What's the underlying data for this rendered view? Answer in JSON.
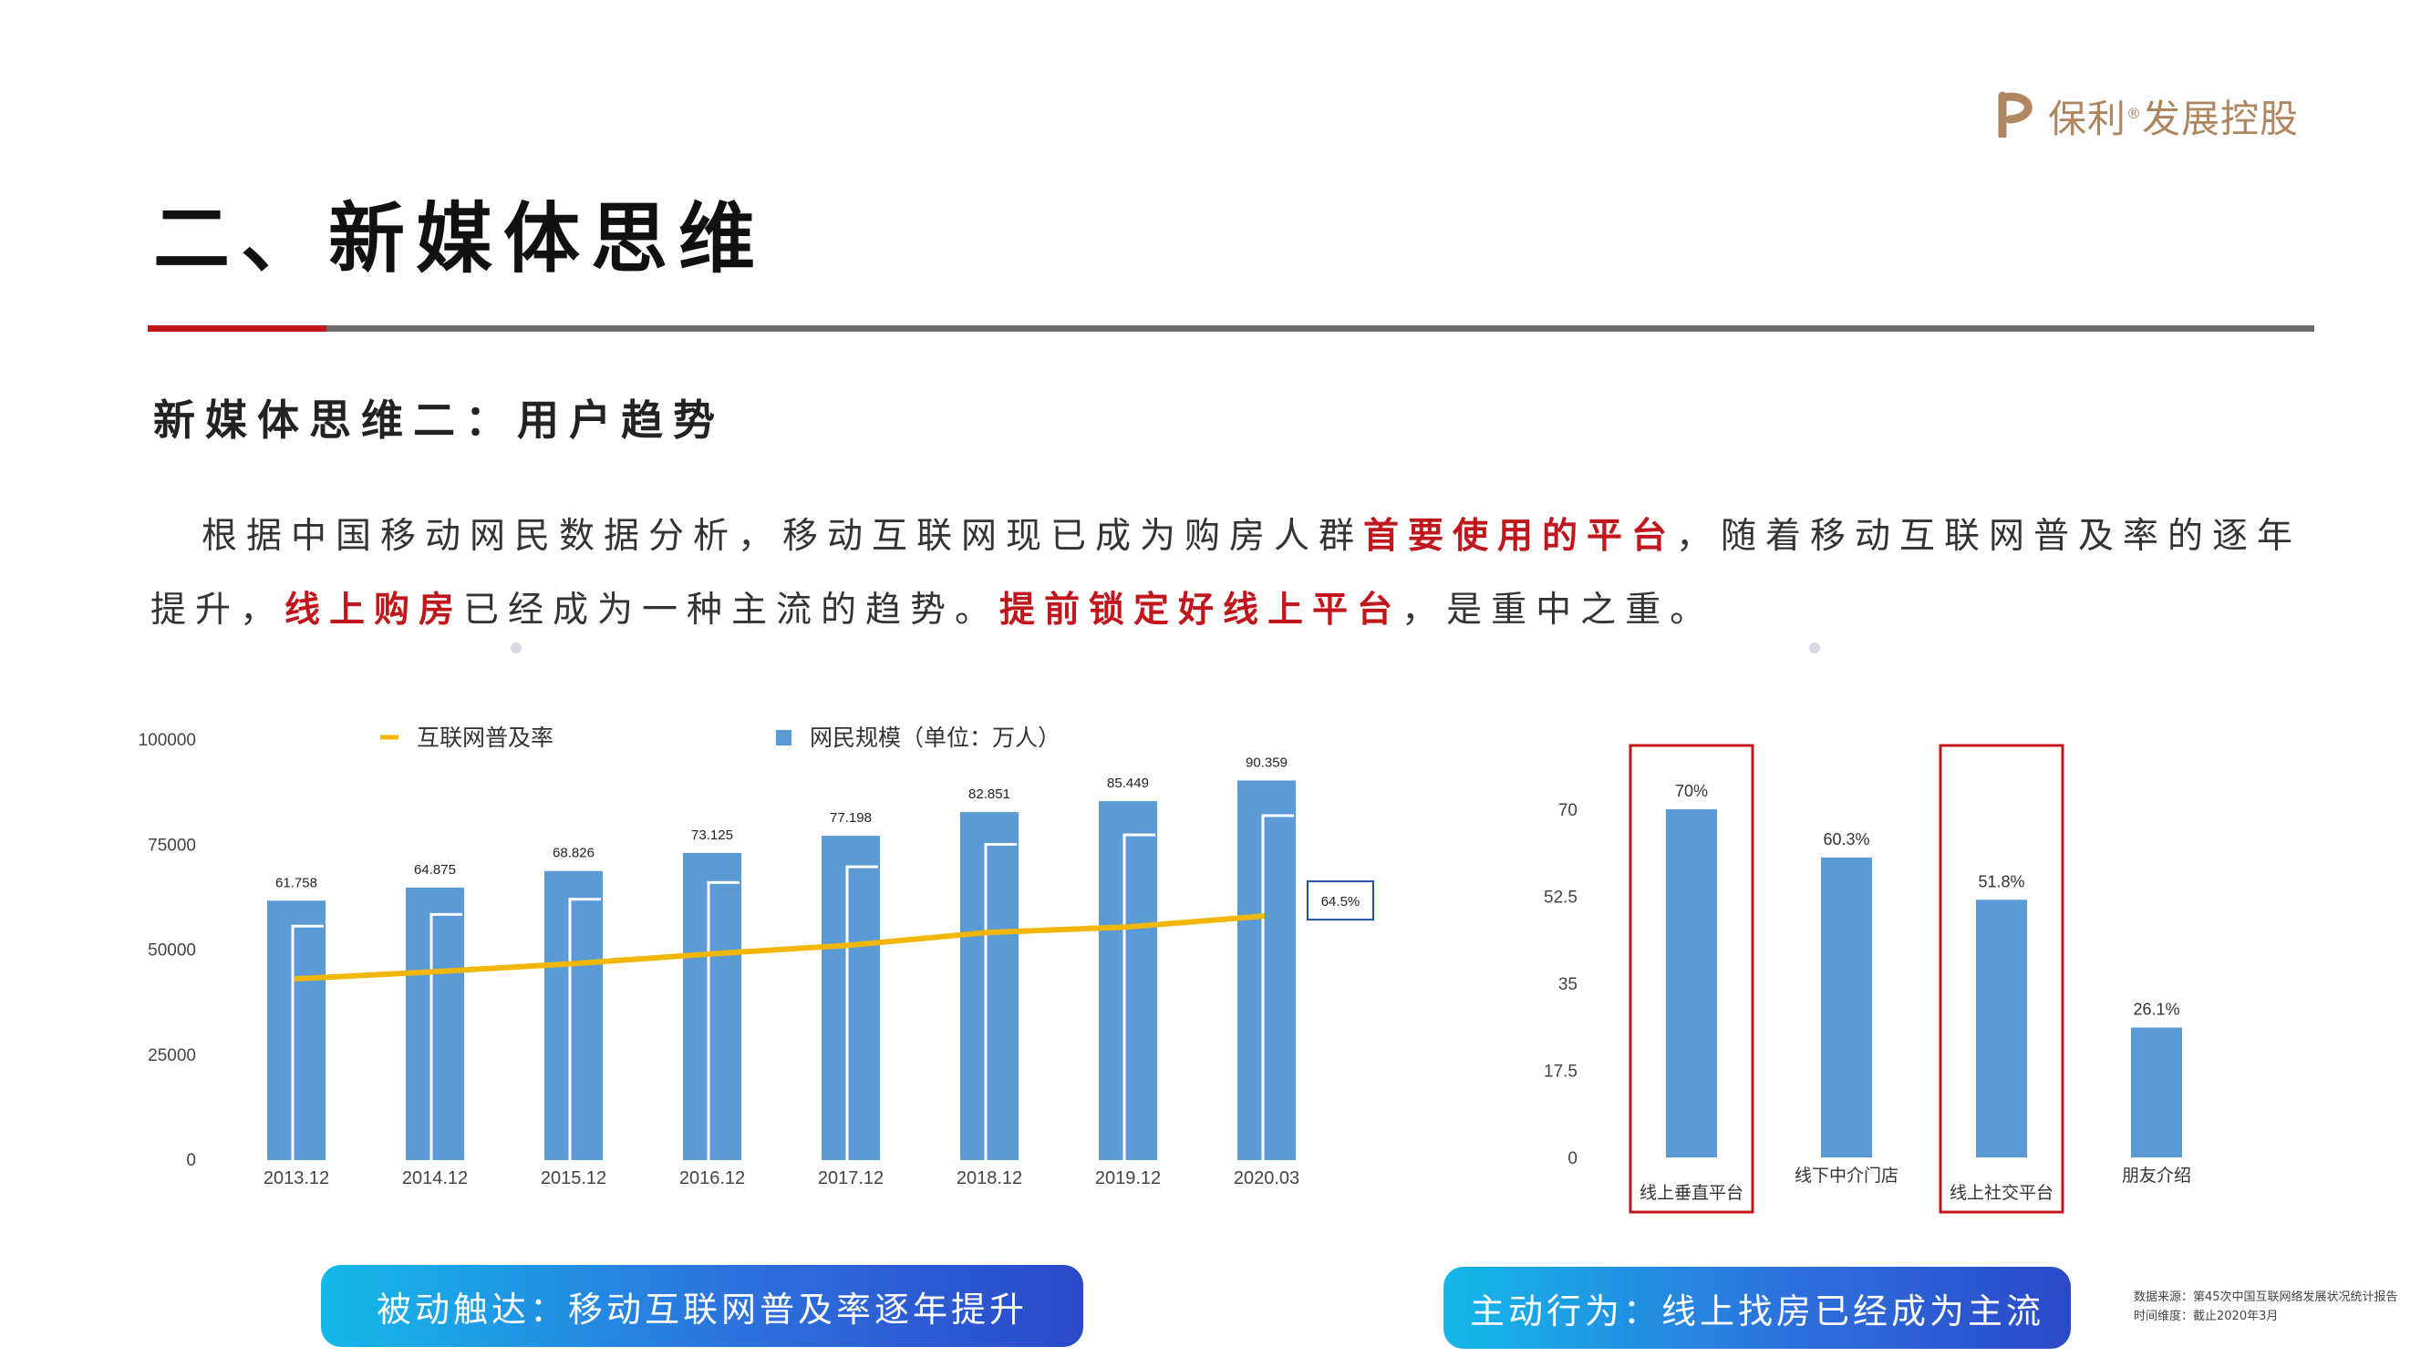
{
  "logo": {
    "brand": "保利",
    "reg": "®",
    "suffix": "发展控股",
    "color": "#b08660"
  },
  "title": "二、新媒体思维",
  "subtitle": "新媒体思维二：用户趋势",
  "paragraph": {
    "p1": "根据中国移动网民数据分析，移动互联网现已成为购房人群",
    "h1": "首要使用的平台",
    "p2": "，随着移动互联网普及率的逐年提升，",
    "h2": "线上购房",
    "p3": "已经成为一种主流的趋势。",
    "h3": "提前锁定好线上平台",
    "p4": "，是重中之重。",
    "highlight_color": "#c0161c"
  },
  "chart_data": [
    {
      "type": "bar",
      "legend": [
        {
          "name": "互联网普及率",
          "marker": "line",
          "color": "#f2b705"
        },
        {
          "name": "网民规模（单位：万人）",
          "marker": "square",
          "color": "#5b9bd5"
        }
      ],
      "categories": [
        "2013.12",
        "2014.12",
        "2015.12",
        "2016.12",
        "2017.12",
        "2018.12",
        "2019.12",
        "2020.03"
      ],
      "series": [
        {
          "name": "网民规模（单位：万人）",
          "type": "bar",
          "values": [
            61758,
            64875,
            68826,
            73125,
            77198,
            82851,
            85449,
            90359
          ],
          "labels": [
            "61.758",
            "64.875",
            "68.826",
            "73.125",
            "77.198",
            "82.851",
            "85.449",
            "90.359"
          ],
          "color": "#5b9bd5"
        },
        {
          "name": "互联网普及率",
          "type": "line",
          "values": [
            45.8,
            47.9,
            50.3,
            53.2,
            55.8,
            59.6,
            61.2,
            64.5
          ],
          "color": "#f2b705",
          "end_label": "64.5%"
        }
      ],
      "yticks": [
        "100000",
        "75000",
        "50000",
        "25000",
        "0"
      ],
      "ylim": [
        0,
        100000
      ],
      "ylabel": ""
    },
    {
      "type": "bar",
      "categories": [
        "线上垂直平台",
        "线下中介门店",
        "线上社交平台",
        "朋友介绍"
      ],
      "values": [
        70,
        60.3,
        51.8,
        26.1
      ],
      "labels": [
        "70%",
        "60.3%",
        "51.8%",
        "26.1%"
      ],
      "highlighted": [
        "线上垂直平台",
        "线上社交平台"
      ],
      "yticks": [
        "70",
        "52.5",
        "35",
        "17.5",
        "0"
      ],
      "ylim": [
        0,
        70
      ],
      "color": "#5b9bd5",
      "highlight_color": "#c0161c"
    }
  ],
  "pills": {
    "left": "被动触达：移动互联网普及率逐年提升",
    "right": "主动行为：线上找房已经成为主流"
  },
  "source": {
    "line1": "数据来源：第45次中国互联网络发展状况统计报告",
    "line2": "时间维度：截止2020年3月"
  }
}
